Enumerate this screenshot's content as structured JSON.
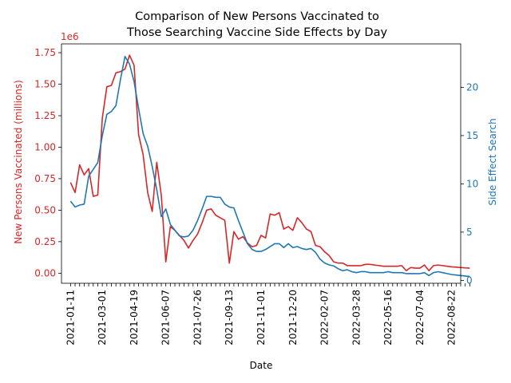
{
  "chart_data": {
    "type": "line",
    "title_lines": [
      "Comparison of New Persons Vaccinated to",
      "Those Searching Vaccine Side Effects by Day"
    ],
    "xlabel": "Date",
    "ylabel_left": "New Persons Vaccinated (millions)",
    "ylabel_right": "Side Effect Search",
    "left_offset_label": "1e6",
    "colors": {
      "left": "#d62728",
      "right": "#1f77b4"
    },
    "x_start": "2021-01-11",
    "x_end": "2022-08-22",
    "xlim": [
      "2020-12-28",
      "2022-09-05"
    ],
    "x_ticks": [
      "2021-01-11",
      "2021-03-01",
      "2021-04-19",
      "2021-06-07",
      "2021-07-26",
      "2021-09-13",
      "2021-11-01",
      "2021-12-20",
      "2022-02-07",
      "2022-03-28",
      "2022-05-16",
      "2022-07-04",
      "2022-08-22"
    ],
    "y_left_lim": [
      -80000,
      1820000
    ],
    "y_left_ticks": [
      0,
      250000,
      500000,
      750000,
      1000000,
      1250000,
      1500000,
      1750000
    ],
    "y_left_tick_labels": [
      "0.00",
      "0.25",
      "0.50",
      "0.75",
      "1.00",
      "1.25",
      "1.50",
      "1.75"
    ],
    "y_right_lim": [
      -0.3,
      24.5
    ],
    "y_right_ticks": [
      0,
      5,
      10,
      15,
      20
    ],
    "y_right_tick_labels": [
      "0",
      "5",
      "10",
      "15",
      "20"
    ],
    "series": [
      {
        "axis": "left",
        "values": [
          720000,
          640000,
          860000,
          780000,
          830000,
          610000,
          620000,
          1230000,
          1480000,
          1490000,
          1590000,
          1600000,
          1620000,
          1730000,
          1650000,
          1100000,
          940000,
          640000,
          490000,
          880000,
          620000,
          90000,
          370000,
          340000,
          300000,
          260000,
          200000,
          260000,
          310000,
          400000,
          500000,
          510000,
          460000,
          440000,
          420000,
          80000,
          330000,
          270000,
          290000,
          240000,
          210000,
          220000,
          300000,
          280000,
          470000,
          460000,
          480000,
          350000,
          370000,
          340000,
          440000,
          400000,
          350000,
          330000,
          220000,
          210000,
          170000,
          140000,
          90000,
          80000,
          80000,
          60000,
          60000,
          60000,
          60000,
          70000,
          70000,
          65000,
          60000,
          55000,
          55000,
          55000,
          55000,
          60000,
          20000,
          45000,
          40000,
          40000,
          65000,
          20000,
          60000,
          65000,
          60000,
          55000,
          50000,
          48000,
          45000,
          42000,
          40000
        ]
      },
      {
        "axis": "right",
        "values": [
          8.2,
          7.6,
          7.8,
          7.9,
          10.8,
          11.5,
          12.2,
          15.0,
          17.2,
          17.5,
          18.1,
          20.8,
          23.2,
          22.4,
          20.6,
          17.8,
          15.2,
          13.9,
          11.8,
          9.4,
          6.6,
          7.4,
          5.8,
          5.2,
          4.6,
          4.5,
          4.6,
          5.2,
          6.2,
          7.4,
          8.7,
          8.7,
          8.6,
          8.6,
          7.9,
          7.6,
          7.5,
          6.2,
          5.0,
          3.8,
          3.2,
          3.0,
          3.0,
          3.2,
          3.5,
          3.8,
          3.8,
          3.4,
          3.8,
          3.4,
          3.5,
          3.3,
          3.2,
          3.3,
          2.9,
          2.2,
          1.8,
          1.6,
          1.5,
          1.2,
          1.0,
          1.1,
          0.9,
          0.8,
          0.9,
          0.9,
          0.8,
          0.8,
          0.8,
          0.8,
          0.9,
          0.8,
          0.8,
          0.8,
          0.7,
          0.7,
          0.7,
          0.7,
          0.8,
          0.5,
          0.8,
          0.9,
          0.8,
          0.7,
          0.6,
          0.55,
          0.5,
          0.45,
          0.4
        ]
      }
    ]
  }
}
